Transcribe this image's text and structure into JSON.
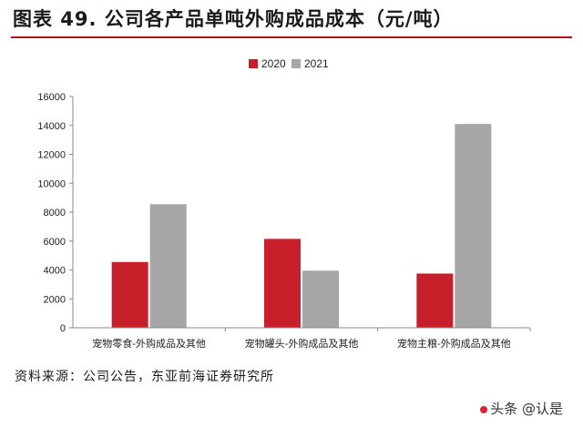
{
  "header": {
    "title": "图表 49. 公司各产品单吨外购成品成本（元/吨）"
  },
  "footer": {
    "source": "资料来源：公司公告，东亚前海证券研究所"
  },
  "watermark": {
    "text": "头条 @认是"
  },
  "colors": {
    "accent": "#b0151f",
    "series_2020": "#c8202a",
    "series_2021": "#a6a6a6"
  },
  "chart_data": {
    "type": "bar",
    "title": "",
    "xlabel": "",
    "ylabel": "",
    "categories": [
      "宠物零食-外购成品及其他",
      "宠物罐头-外购成品及其他",
      "宠物主粮-外购成品及其他"
    ],
    "series": [
      {
        "name": "2020",
        "values": [
          4550,
          6150,
          3750
        ]
      },
      {
        "name": "2021",
        "values": [
          8550,
          3950,
          14100
        ]
      }
    ],
    "ylim": [
      0,
      16000
    ],
    "yticks": [
      "0",
      "2000",
      "4000",
      "6000",
      "8000",
      "10000",
      "12000",
      "14000",
      "16000"
    ],
    "grid": false,
    "legend_position": "top-center"
  }
}
